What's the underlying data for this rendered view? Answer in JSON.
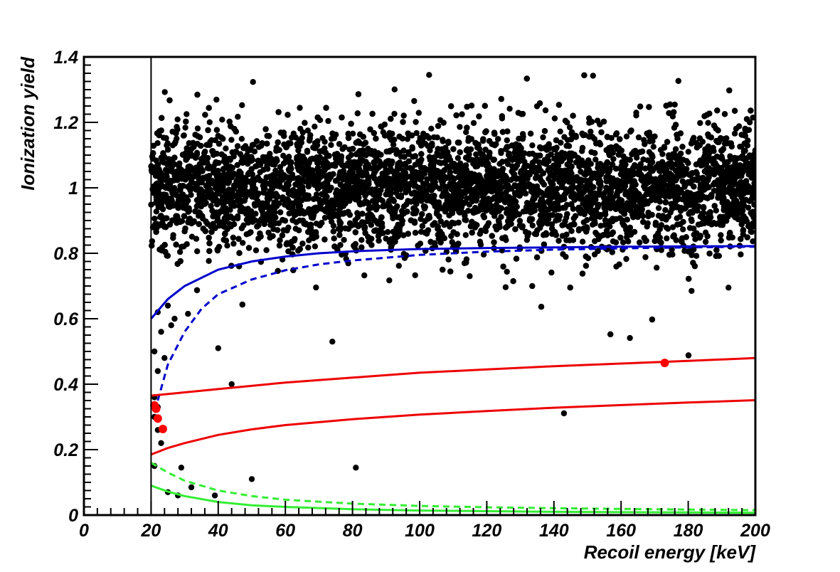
{
  "chart_data": {
    "type": "scatter",
    "title": "",
    "xlabel": "Recoil energy [keV]",
    "ylabel": "Ionization yield",
    "xlim": [
      0,
      200
    ],
    "ylim": [
      0,
      1.4
    ],
    "x_ticks": [
      0,
      20,
      40,
      60,
      80,
      100,
      120,
      140,
      160,
      180,
      200
    ],
    "y_ticks": [
      0,
      0.2,
      0.4,
      0.6,
      0.8,
      1,
      1.2,
      1.4
    ],
    "x_tick_labels": [
      "0",
      "20",
      "40",
      "60",
      "80",
      "100",
      "120",
      "140",
      "160",
      "180",
      "200"
    ],
    "y_tick_labels": [
      "0",
      "0.2",
      "0.4",
      "0.6",
      "0.8",
      "1",
      "1.2",
      "1.4"
    ],
    "grid": false,
    "legend": "none",
    "threshold_line_x": 20,
    "colors": {
      "electron_recoils": "#000000",
      "nuclear_candidates": "#ff0000",
      "blue_curves": "#0000cc",
      "red_curves": "#ee0000",
      "green_curves": "#33ee33"
    },
    "electron_recoil_band": {
      "x_range": [
        20,
        200
      ],
      "y_center": 1.0,
      "y_sigma": 0.09,
      "approx_points": 6000
    },
    "outlier_points": [
      {
        "x": 21,
        "y": 0.15
      },
      {
        "x": 29,
        "y": 0.145
      },
      {
        "x": 25,
        "y": 0.07
      },
      {
        "x": 28,
        "y": 0.06
      },
      {
        "x": 32,
        "y": 0.085
      },
      {
        "x": 39,
        "y": 0.06
      },
      {
        "x": 50,
        "y": 0.11
      },
      {
        "x": 81,
        "y": 0.145
      },
      {
        "x": 40,
        "y": 0.51
      },
      {
        "x": 44,
        "y": 0.4
      },
      {
        "x": 74,
        "y": 0.53
      },
      {
        "x": 181,
        "y": 0.685
      },
      {
        "x": 192,
        "y": 0.695
      },
      {
        "x": 22,
        "y": 0.44
      },
      {
        "x": 24,
        "y": 0.48
      },
      {
        "x": 21,
        "y": 0.5
      },
      {
        "x": 23,
        "y": 0.56
      },
      {
        "x": 26,
        "y": 0.58
      },
      {
        "x": 27,
        "y": 0.6
      },
      {
        "x": 31,
        "y": 0.615
      },
      {
        "x": 22,
        "y": 0.62
      },
      {
        "x": 25,
        "y": 0.64
      },
      {
        "x": 21,
        "y": 0.36
      },
      {
        "x": 22,
        "y": 0.33
      },
      {
        "x": 21,
        "y": 0.3
      },
      {
        "x": 23,
        "y": 0.22
      },
      {
        "x": 22,
        "y": 0.26
      }
    ],
    "red_points": [
      {
        "x": 21,
        "y": 0.335
      },
      {
        "x": 21.5,
        "y": 0.325
      },
      {
        "x": 22,
        "y": 0.295
      },
      {
        "x": 23.5,
        "y": 0.263
      },
      {
        "x": 173,
        "y": 0.465
      }
    ],
    "series": [
      {
        "color": "#0000cc",
        "style": "solid",
        "x": [
          20,
          25,
          30,
          40,
          50,
          60,
          70,
          80,
          100,
          120,
          140,
          160,
          180,
          200
        ],
        "y": [
          0.6,
          0.66,
          0.7,
          0.75,
          0.775,
          0.79,
          0.8,
          0.806,
          0.813,
          0.816,
          0.818,
          0.82,
          0.821,
          0.822
        ]
      },
      {
        "color": "#0000cc",
        "style": "dashed",
        "x": [
          22,
          25,
          30,
          35,
          40,
          50,
          60,
          70,
          80,
          100,
          120,
          140,
          160,
          180,
          200
        ],
        "y": [
          0.35,
          0.46,
          0.56,
          0.63,
          0.675,
          0.72,
          0.748,
          0.766,
          0.778,
          0.795,
          0.805,
          0.811,
          0.815,
          0.818,
          0.82
        ]
      },
      {
        "color": "#ee0000",
        "style": "solid",
        "x": [
          20,
          30,
          40,
          60,
          80,
          100,
          120,
          140,
          160,
          180,
          200
        ],
        "y": [
          0.365,
          0.375,
          0.385,
          0.405,
          0.42,
          0.435,
          0.445,
          0.455,
          0.463,
          0.471,
          0.48
        ]
      },
      {
        "color": "#ee0000",
        "style": "solid",
        "x": [
          20,
          25,
          30,
          40,
          50,
          60,
          80,
          100,
          120,
          140,
          160,
          180,
          200
        ],
        "y": [
          0.185,
          0.205,
          0.22,
          0.245,
          0.262,
          0.275,
          0.293,
          0.307,
          0.318,
          0.328,
          0.336,
          0.344,
          0.351
        ]
      },
      {
        "color": "#33ee33",
        "style": "dashed",
        "x": [
          20,
          25,
          30,
          40,
          50,
          60,
          80,
          100,
          120,
          140,
          160,
          180,
          200
        ],
        "y": [
          0.16,
          0.13,
          0.105,
          0.075,
          0.058,
          0.047,
          0.035,
          0.028,
          0.024,
          0.021,
          0.019,
          0.017,
          0.015
        ]
      },
      {
        "color": "#33ee33",
        "style": "solid",
        "x": [
          20,
          25,
          30,
          40,
          50,
          60,
          80,
          100,
          120,
          140,
          160,
          180,
          200
        ],
        "y": [
          0.09,
          0.072,
          0.058,
          0.04,
          0.03,
          0.025,
          0.018,
          0.014,
          0.012,
          0.01,
          0.009,
          0.008,
          0.007
        ]
      }
    ]
  }
}
